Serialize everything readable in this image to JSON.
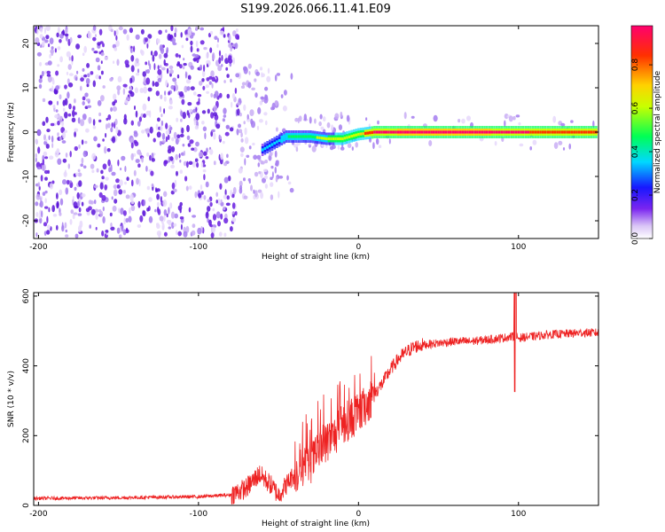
{
  "title": "S199.2026.066.11.41.E09",
  "colors": {
    "snr_line": "#ee2222",
    "axis": "#000000",
    "noise": "#6a1fe0",
    "background": "#ffffff"
  },
  "chart_data": [
    {
      "type": "heatmap",
      "xlabel": "Height of straight line (km)",
      "ylabel": "Frequency (Hz)",
      "xlim": [
        -203,
        150
      ],
      "ylim": [
        -24,
        24
      ],
      "xticks": [
        -200,
        -100,
        0,
        100
      ],
      "yticks": [
        -20,
        -10,
        0,
        10,
        20
      ],
      "colorbar": {
        "label": "Normalized spectral amplitude",
        "range": [
          0.0,
          0.98
        ],
        "ticks": [
          0.0,
          0.2,
          0.4,
          0.6,
          0.8
        ],
        "tick_labels": [
          "0.0",
          "0.2",
          "0.4",
          "0.6",
          "0.8"
        ],
        "colormap": "rainbow (white, violet, blue, cyan, green, yellow, red, magenta)"
      },
      "band": {
        "description": "Narrow band near 0 Hz strengthening with height",
        "profile": [
          {
            "x": -60,
            "freq": -4,
            "amplitude": 0.3
          },
          {
            "x": -45,
            "freq": -1,
            "amplitude": 0.35
          },
          {
            "x": -30,
            "freq": -1,
            "amplitude": 0.45
          },
          {
            "x": -20,
            "freq": -1.5,
            "amplitude": 0.5
          },
          {
            "x": -10,
            "freq": -1.5,
            "amplitude": 0.55
          },
          {
            "x": 0,
            "freq": -0.5,
            "amplitude": 0.6
          },
          {
            "x": 10,
            "freq": 0,
            "amplitude": 0.85
          },
          {
            "x": 50,
            "freq": 0,
            "amplitude": 0.9
          },
          {
            "x": 100,
            "freq": 0,
            "amplitude": 0.85
          },
          {
            "x": 150,
            "freq": 0,
            "amplitude": 0.8
          }
        ]
      }
    },
    {
      "type": "line",
      "xlabel": "Height of straight line (km)",
      "ylabel": "SNR (10 * v/v)",
      "xlim": [
        -203,
        150
      ],
      "ylim": [
        0,
        610
      ],
      "xticks": [
        -200,
        -100,
        0,
        100
      ],
      "yticks": [
        0,
        200,
        400,
        600
      ],
      "series": [
        {
          "name": "SNR",
          "x": [
            -203,
            -150,
            -100,
            -80,
            -70,
            -62,
            -55,
            -50,
            -45,
            -40,
            -35,
            -30,
            -25,
            -20,
            -15,
            -10,
            -5,
            0,
            5,
            10,
            15,
            20,
            25,
            30,
            35,
            40,
            50,
            60,
            70,
            80,
            90,
            98,
            100,
            110,
            120,
            130,
            140,
            150
          ],
          "values": [
            20,
            22,
            25,
            30,
            50,
            90,
            60,
            30,
            60,
            90,
            110,
            120,
            150,
            180,
            200,
            230,
            250,
            260,
            290,
            320,
            350,
            390,
            420,
            440,
            455,
            460,
            465,
            470,
            470,
            475,
            480,
            485,
            480,
            485,
            490,
            492,
            495,
            495
          ]
        }
      ]
    }
  ]
}
